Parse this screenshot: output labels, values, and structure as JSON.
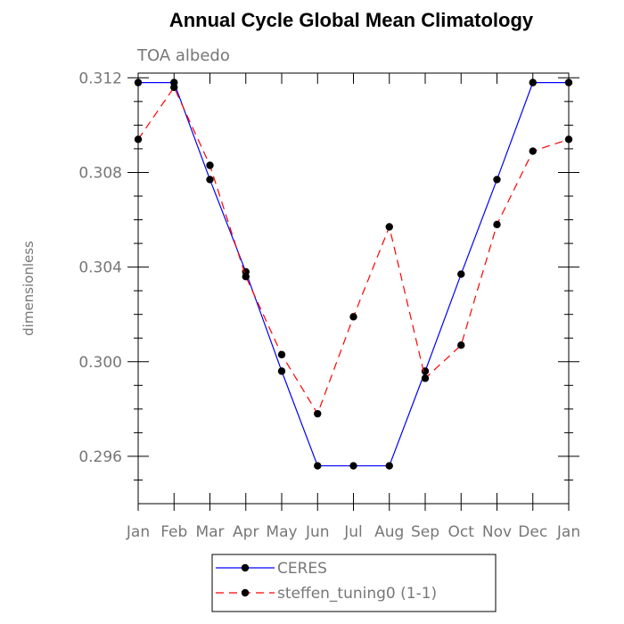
{
  "chart_data": {
    "type": "line",
    "title": "Annual Cycle Global Mean Climatology",
    "subtitle": "TOA albedo",
    "ylabel": "dimensionless",
    "xlabel": "",
    "categories": [
      "Jan",
      "Feb",
      "Mar",
      "Apr",
      "May",
      "Jun",
      "Jul",
      "Aug",
      "Sep",
      "Oct",
      "Nov",
      "Dec",
      "Jan"
    ],
    "ylim": [
      0.294,
      0.3122
    ],
    "yticks": [
      0.296,
      0.3,
      0.304,
      0.308,
      0.312
    ],
    "ytick_labels": [
      "0.296",
      "0.300",
      "0.304",
      "0.308",
      "0.312"
    ],
    "grid": false,
    "legend_position": "bottom-center",
    "series": [
      {
        "name": "CERES",
        "color": "#0000ff",
        "dash": "solid",
        "values": [
          0.3118,
          0.3118,
          0.3077,
          0.3038,
          0.2996,
          0.2956,
          0.2956,
          0.2956,
          0.2996,
          0.3037,
          0.3077,
          0.3118,
          0.3118
        ]
      },
      {
        "name": "steffen_tuning0 (1-1)",
        "color": "#ff0000",
        "dash": "dashed",
        "values": [
          0.3094,
          0.3116,
          0.3083,
          0.3036,
          0.3003,
          0.2978,
          0.3019,
          0.3057,
          0.2993,
          0.3007,
          0.3058,
          0.3089,
          0.3094
        ]
      }
    ]
  }
}
